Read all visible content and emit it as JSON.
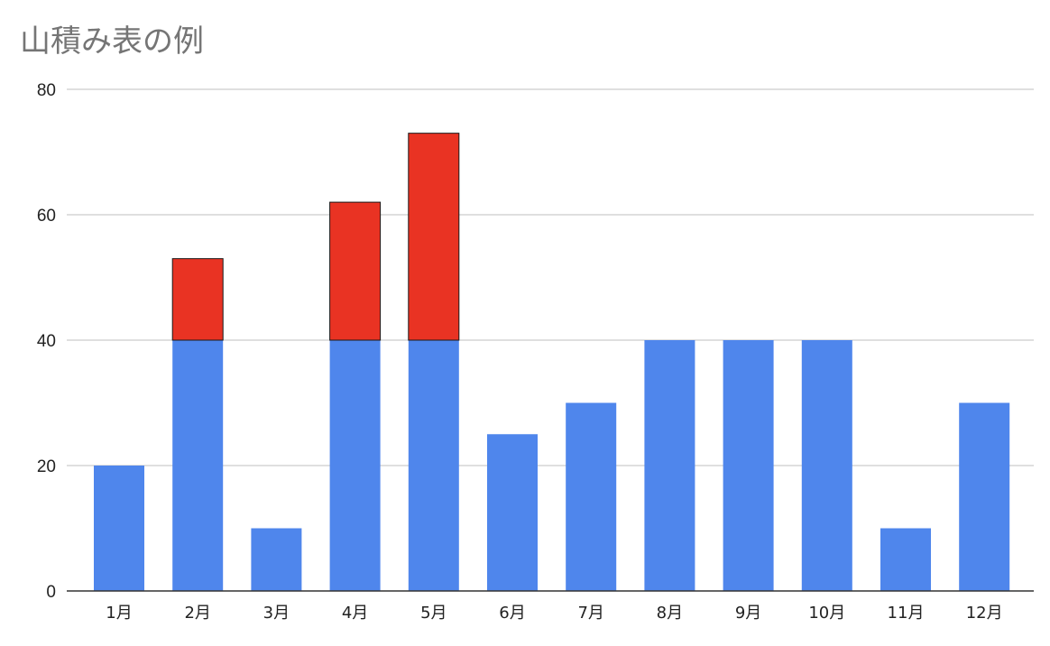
{
  "chart_data": {
    "type": "bar",
    "stacked": true,
    "title": "山積み表の例",
    "xlabel": "",
    "ylabel": "",
    "categories": [
      "1月",
      "2月",
      "3月",
      "4月",
      "5月",
      "6月",
      "7月",
      "8月",
      "9月",
      "10月",
      "11月",
      "12月"
    ],
    "series": [
      {
        "color": "#4F86EC",
        "values": [
          20,
          40,
          10,
          40,
          40,
          25,
          30,
          40,
          40,
          40,
          10,
          30
        ]
      },
      {
        "color": "#E93323",
        "values": [
          0,
          13,
          0,
          22,
          33,
          0,
          0,
          0,
          0,
          0,
          0,
          0
        ]
      }
    ],
    "ylim": [
      0,
      80
    ],
    "yticks": [
      0,
      20,
      40,
      60,
      80
    ],
    "grid": true,
    "legend": "none"
  }
}
